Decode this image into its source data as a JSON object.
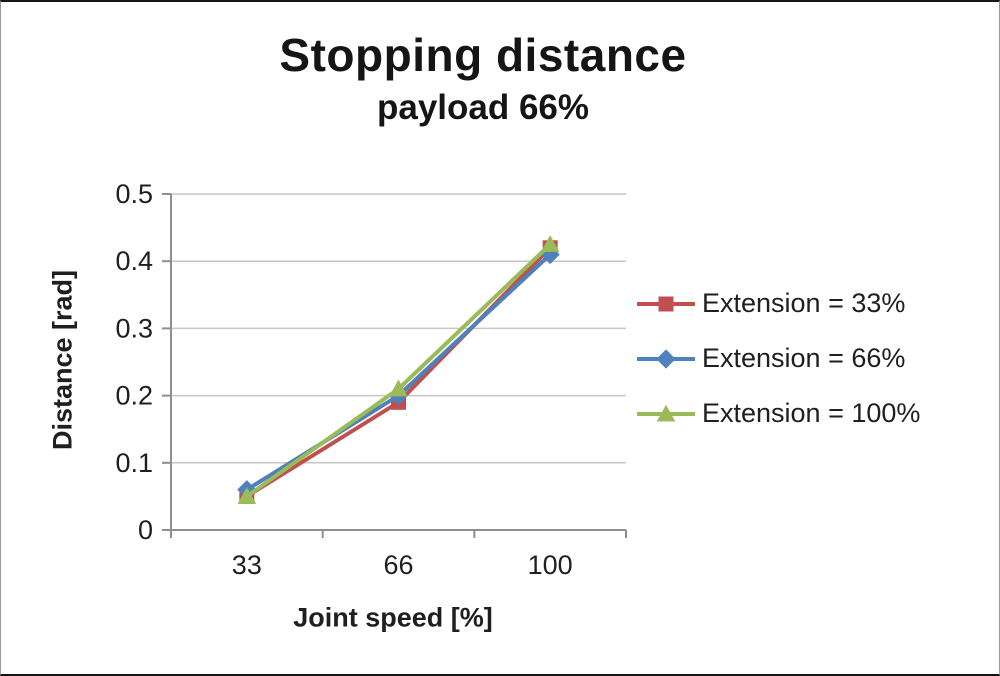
{
  "chart_data": {
    "type": "line",
    "title": "Stopping distance",
    "subtitle": "payload 66%",
    "xlabel": "Joint speed [%]",
    "ylabel": "Distance [rad]",
    "categories": [
      "33",
      "66",
      "100"
    ],
    "series": [
      {
        "name": "Extension = 33%",
        "color": "#C0504D",
        "marker": "square",
        "values": [
          0.05,
          0.19,
          0.42
        ]
      },
      {
        "name": "Extension = 66%",
        "color": "#4F81BD",
        "marker": "diamond",
        "values": [
          0.06,
          0.2,
          0.41
        ]
      },
      {
        "name": "Extension = 100%",
        "color": "#9BBB59",
        "marker": "triangle",
        "values": [
          0.05,
          0.21,
          0.425
        ]
      }
    ],
    "ylim": [
      0,
      0.5
    ],
    "ytick_step": 0.1,
    "grid": true,
    "legend_position": "right",
    "style": {
      "grid_color": "#c6c6c6",
      "axis_color": "#8e8e8e",
      "text_color": "#1f1f1f"
    }
  }
}
